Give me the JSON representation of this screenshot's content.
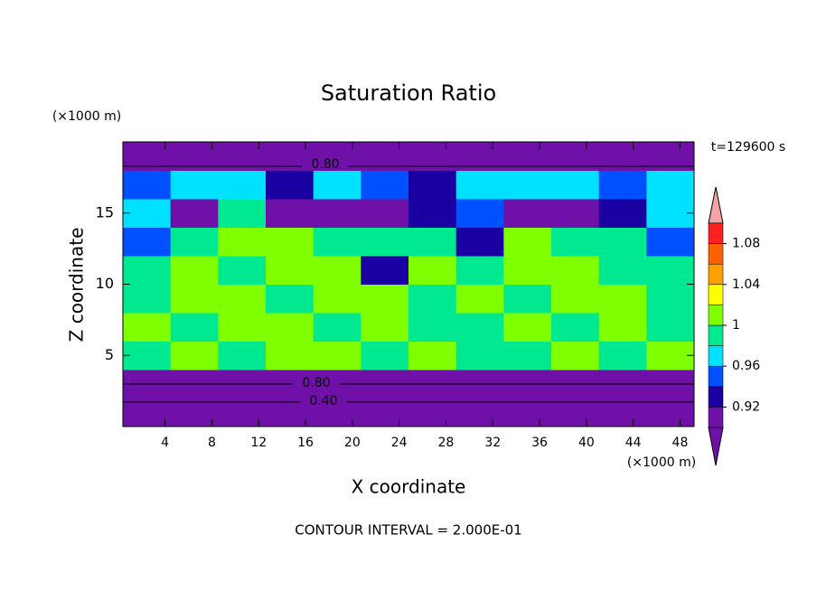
{
  "chart_data": {
    "type": "contour",
    "title": "Saturation Ratio",
    "time_label": "t=129600 s",
    "x_label": "X coordinate",
    "y_label": "Z coordinate",
    "x_unit": "(×1000 m)",
    "y_unit": "(×1000 m)",
    "footer": "CONTOUR INTERVAL = 2.000E-01",
    "contour_labels": [
      "0.80",
      "0.80",
      "0.40"
    ],
    "xlim": [
      0.4,
      49.2
    ],
    "ylim": [
      0,
      20
    ],
    "xticks": [
      4,
      8,
      12,
      16,
      20,
      24,
      28,
      32,
      36,
      40,
      44,
      48
    ],
    "yticks": [
      5,
      10,
      15
    ],
    "levels": [
      0.9,
      0.92,
      0.94,
      0.96,
      0.98,
      1,
      1.02,
      1.04,
      1.06,
      1.08,
      1.1
    ],
    "colors": [
      "#6f10a8",
      "#6f10a8",
      "#1a00a0",
      "#0050ff",
      "#00e0ff",
      "#00e890",
      "#80ff00",
      "#ffff00",
      "#ffa000",
      "#ff6000",
      "#ff2020",
      "#f4a4a4"
    ],
    "cbar_ticks": [
      0.92,
      0.96,
      1,
      1.04,
      1.08
    ],
    "z": [
      [
        0.4,
        0.4,
        0.4,
        0.4,
        0.4,
        0.4,
        0.4,
        0.4,
        0.4,
        0.4,
        0.4,
        0.4
      ],
      [
        0.85,
        0.85,
        0.85,
        0.85,
        0.85,
        0.85,
        0.85,
        0.85,
        0.85,
        0.85,
        0.85,
        0.85
      ],
      [
        0.99,
        1.01,
        0.99,
        1.01,
        1.01,
        0.99,
        1.01,
        0.99,
        0.99,
        1.01,
        0.99,
        1.01
      ],
      [
        1.01,
        0.99,
        1.01,
        1.01,
        0.99,
        1.01,
        0.99,
        0.99,
        1.01,
        0.99,
        1.01,
        0.99
      ],
      [
        0.99,
        1.01,
        1.01,
        0.99,
        1.01,
        1.01,
        0.99,
        1.01,
        0.99,
        1.01,
        1.01,
        0.99
      ],
      [
        0.99,
        1.01,
        0.99,
        1.01,
        1.01,
        0.93,
        1.01,
        0.99,
        1.01,
        1.01,
        0.99,
        0.99
      ],
      [
        0.95,
        0.99,
        1.01,
        1.01,
        0.99,
        0.99,
        0.99,
        0.93,
        1.01,
        0.99,
        0.99,
        0.95
      ],
      [
        0.97,
        0.85,
        0.99,
        0.85,
        0.85,
        0.85,
        0.93,
        0.95,
        0.85,
        0.85,
        0.93,
        0.97
      ],
      [
        0.95,
        0.97,
        0.97,
        0.93,
        0.97,
        0.95,
        0.93,
        0.97,
        0.97,
        0.97,
        0.95,
        0.97
      ],
      [
        0.7,
        0.7,
        0.7,
        0.7,
        0.7,
        0.7,
        0.7,
        0.7,
        0.7,
        0.7,
        0.7,
        0.7
      ]
    ]
  }
}
